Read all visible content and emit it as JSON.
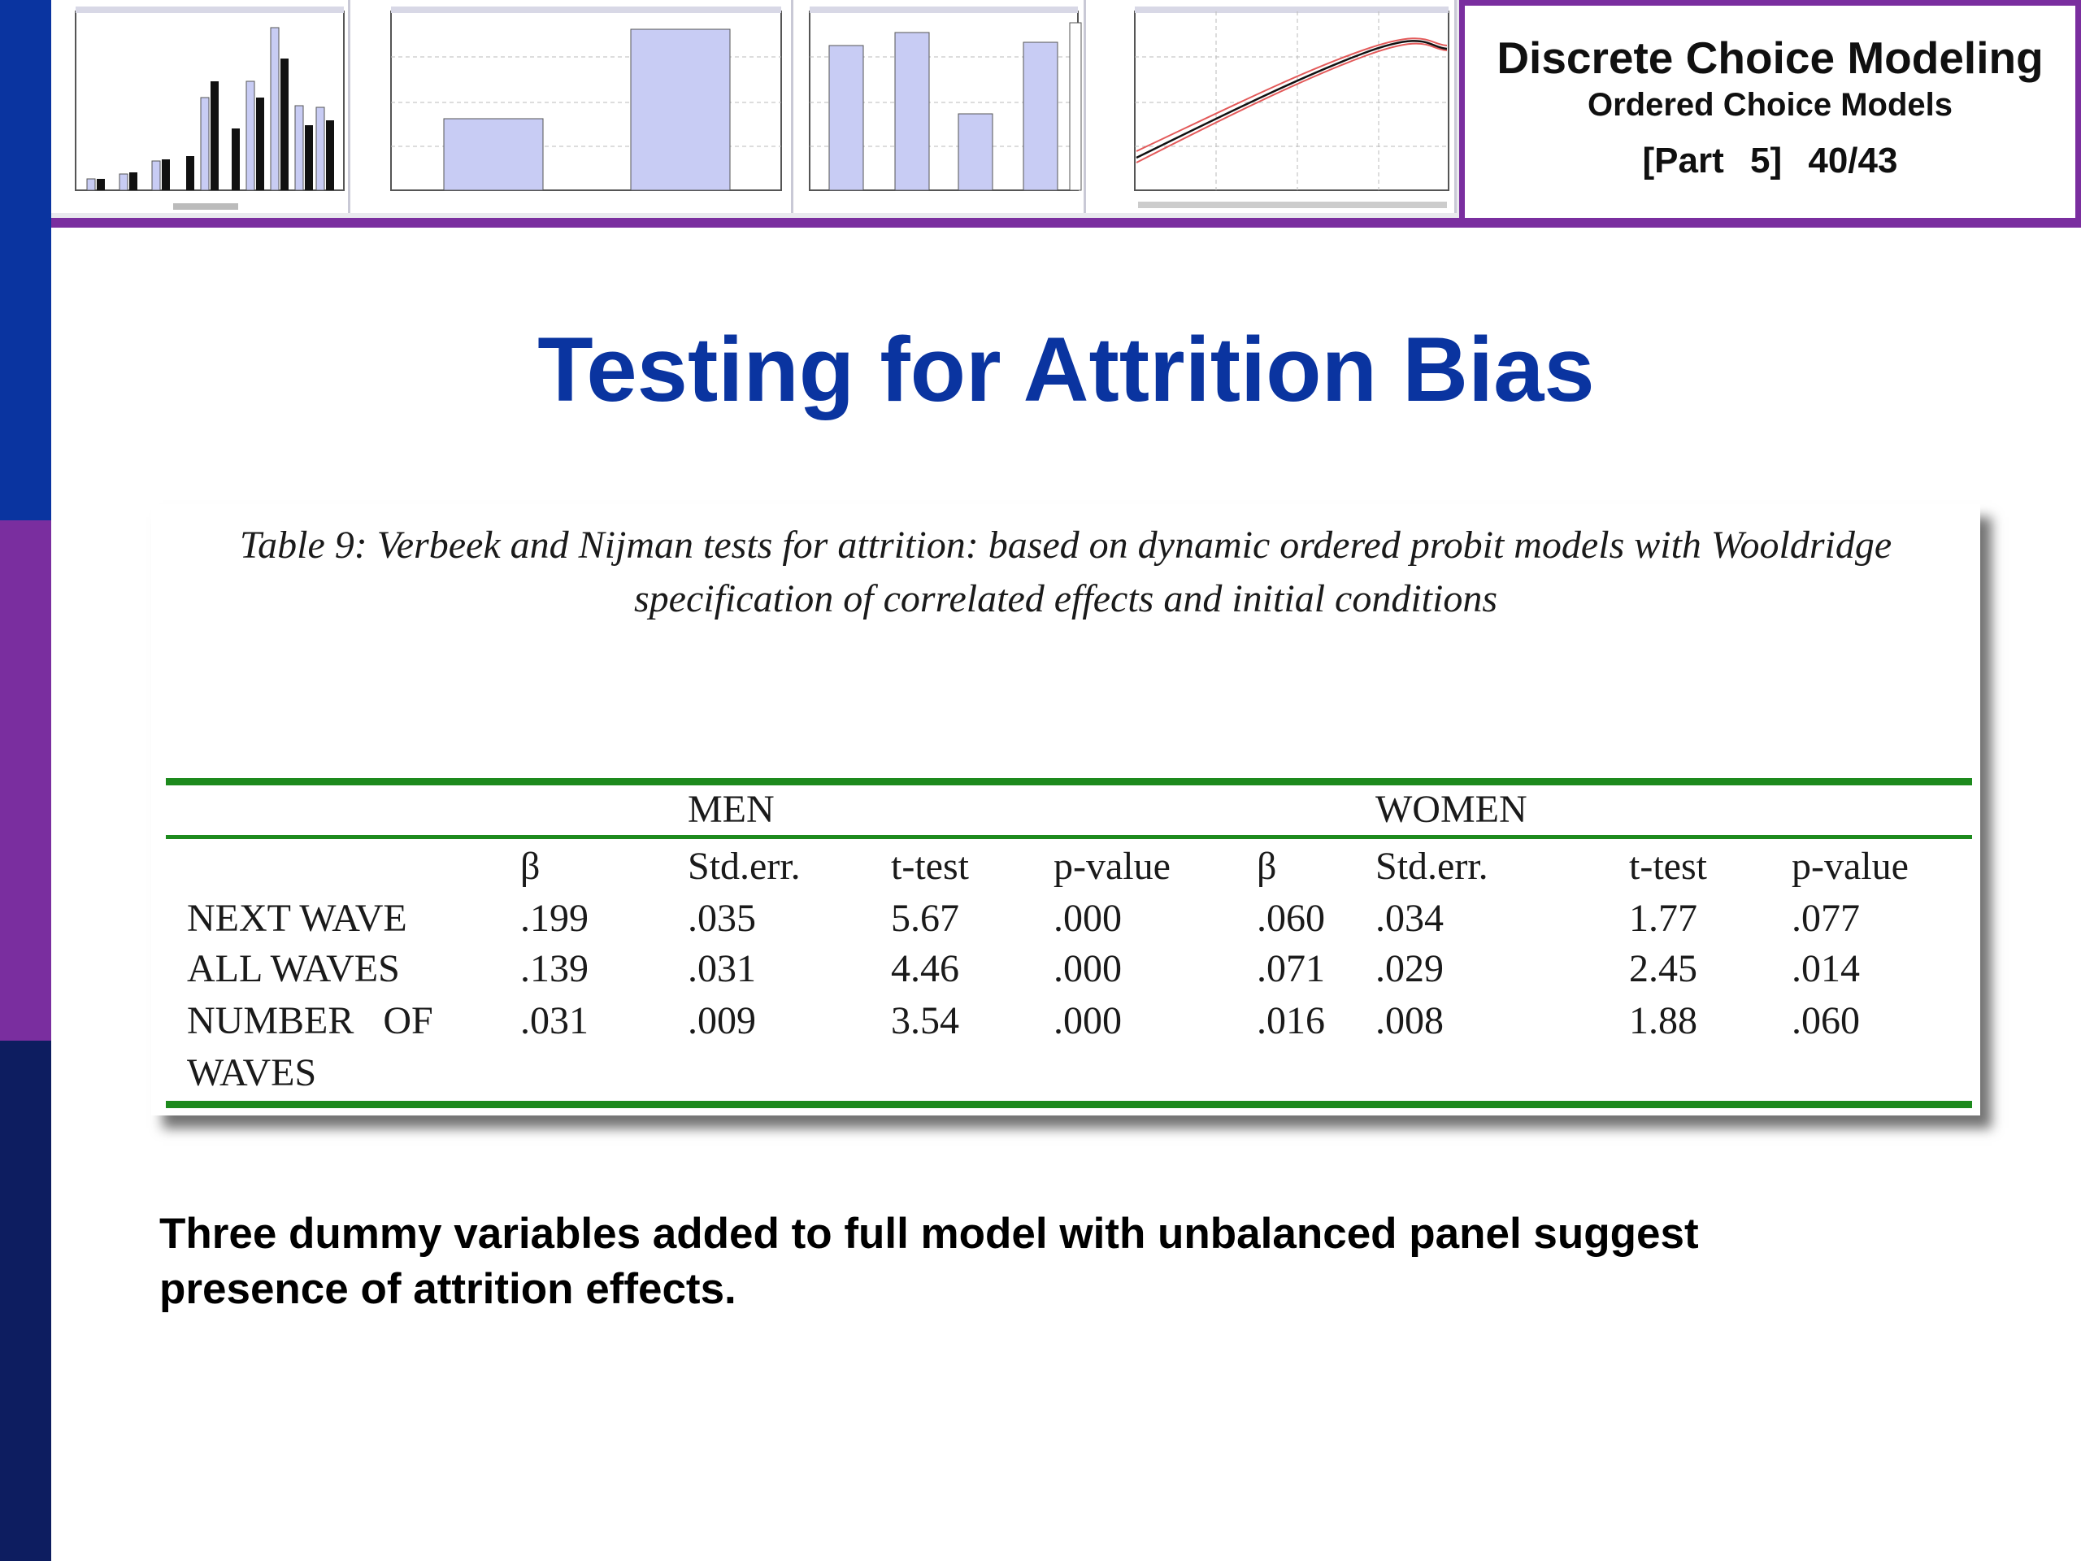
{
  "header": {
    "course_title": "Discrete Choice Modeling",
    "subtitle": "Ordered Choice Models",
    "part": "[Part 5]",
    "page": "40/43"
  },
  "slide_title": "Testing for Attrition Bias",
  "table": {
    "caption_line1": "Table 9: Verbeek and Nijman  tests for attrition: based on dynamic  ordered probit models with Wooldridge",
    "caption_line2": "specification of correlated effects and initial conditions",
    "group_men": "MEN",
    "group_women": "WOMEN",
    "columns": [
      "β",
      "Std.err.",
      "t-test",
      "p-value",
      "β",
      "Std.err.",
      "t-test",
      "p-value"
    ],
    "rows": [
      {
        "label": "NEXT WAVE",
        "label2": "",
        "values": [
          ".199",
          ".035",
          "5.67",
          ".000",
          ".060",
          ".034",
          "1.77",
          ".077"
        ]
      },
      {
        "label": "ALL WAVES",
        "label2": "",
        "values": [
          ".139",
          ".031",
          "4.46",
          ".000",
          ".071",
          ".029",
          "2.45",
          ".014"
        ]
      },
      {
        "label": "NUMBER   OF",
        "label2": "WAVES",
        "values": [
          ".031",
          ".009",
          "3.54",
          ".000",
          ".016",
          ".008",
          "1.88",
          ".060"
        ]
      }
    ]
  },
  "footnote_line1": "Three dummy variables added to full model with unbalanced panel suggest",
  "footnote_line2": "presence of attrition effects.",
  "colors": {
    "title_blue": "#0a34a0",
    "accent_purple": "#7a2e9f",
    "rule_green": "#1d8a1d"
  }
}
